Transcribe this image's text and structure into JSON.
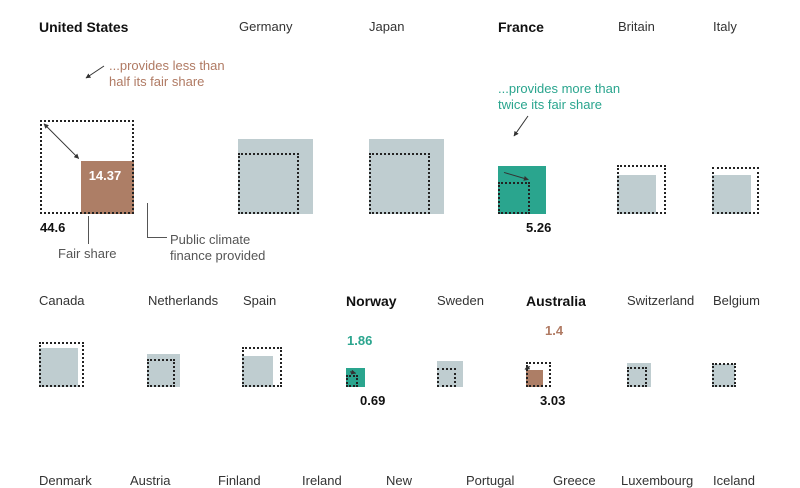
{
  "chart_data": {
    "type": "proportional-squares",
    "colors": {
      "neutral": "#bfcdd0",
      "below_half": "#ad7e66",
      "above_double": "#2aa58e",
      "fair_share_outline": "#222222"
    },
    "legend": {
      "fair_share": "Fair share",
      "provided": "Public climate finance provided",
      "below_half_note": "...provides less than half its fair share",
      "above_double_note": "...provides more than twice its fair share"
    },
    "countries": [
      {
        "name": "United States",
        "highlight": "below_half",
        "fair_share": 44.6,
        "provided": 14.37,
        "fair_label": "44.6",
        "provided_label": "14.37"
      },
      {
        "name": "Germany",
        "highlight": null,
        "fair_share": 18.5,
        "provided": 28.5
      },
      {
        "name": "Japan",
        "highlight": null,
        "fair_share": 18.5,
        "provided": 28.5
      },
      {
        "name": "France",
        "highlight": "above_double",
        "fair_share": 5.26,
        "provided": 11.37,
        "fair_label": "5.26",
        "provided_label": "11.37"
      },
      {
        "name": "Britain",
        "highlight": null,
        "fair_share": 12,
        "provided": 7.5
      },
      {
        "name": "Italy",
        "highlight": null,
        "fair_share": 11,
        "provided": 7.6
      },
      {
        "name": "Canada",
        "highlight": null,
        "fair_share": 10.3,
        "provided": 7.7
      },
      {
        "name": "Netherlands",
        "highlight": null,
        "fair_share": 4.0,
        "provided": 5.6
      },
      {
        "name": "Spain",
        "highlight": null,
        "fair_share": 8.0,
        "provided": 4.7
      },
      {
        "name": "Norway",
        "highlight": "above_double",
        "fair_share": 0.69,
        "provided": 1.86,
        "fair_label": "0.69",
        "provided_label": "1.86"
      },
      {
        "name": "Sweden",
        "highlight": null,
        "fair_share": 1.9,
        "provided": 3.5
      },
      {
        "name": "Australia",
        "highlight": "below_half",
        "fair_share": 3.03,
        "provided": 1.4,
        "fair_label": "3.03",
        "provided_label": "1.4"
      },
      {
        "name": "Switzerland",
        "highlight": null,
        "fair_share": 2.0,
        "provided": 3.0
      },
      {
        "name": "Belgium",
        "highlight": null,
        "fair_share": 2.9,
        "provided": 2.6
      },
      {
        "name": "Denmark",
        "highlight": null,
        "fair_share": null,
        "provided": null
      },
      {
        "name": "Austria",
        "highlight": null,
        "fair_share": null,
        "provided": null
      },
      {
        "name": "Finland",
        "highlight": null,
        "fair_share": null,
        "provided": null
      },
      {
        "name": "Ireland",
        "highlight": null,
        "fair_share": null,
        "provided": null
      },
      {
        "name": "New",
        "highlight": null,
        "fair_share": null,
        "provided": null
      },
      {
        "name": "Portugal",
        "highlight": null,
        "fair_share": null,
        "provided": null
      },
      {
        "name": "Greece",
        "highlight": null,
        "fair_share": null,
        "provided": null
      },
      {
        "name": "Luxembourg",
        "highlight": null,
        "fair_share": null,
        "provided": null
      },
      {
        "name": "Iceland",
        "highlight": null,
        "fair_share": null,
        "provided": null
      }
    ]
  }
}
